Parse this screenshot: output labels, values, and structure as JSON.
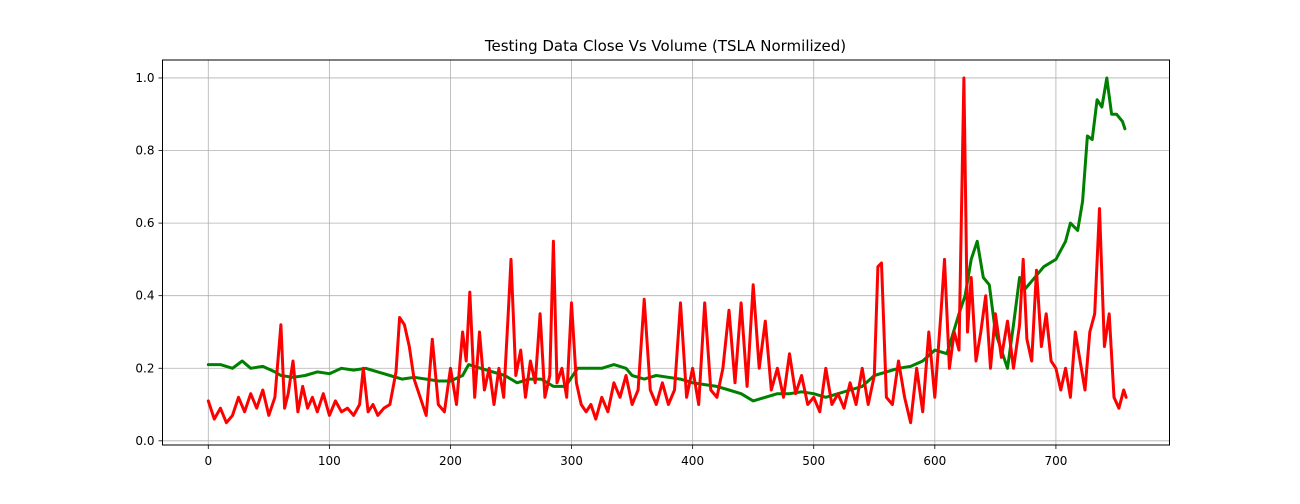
{
  "chart_data": {
    "type": "line",
    "title": "Testing Data Close Vs Volume (TSLA Normilized)",
    "xlabel": "",
    "ylabel": "",
    "xlim": [
      -37.8,
      793.8
    ],
    "ylim": [
      -0.0115,
      1.0495
    ],
    "grid": true,
    "x_ticks": [
      0,
      100,
      200,
      300,
      400,
      500,
      600,
      700
    ],
    "x_tick_labels": [
      "0",
      "100",
      "200",
      "300",
      "400",
      "500",
      "600",
      "700"
    ],
    "y_ticks": [
      0.0,
      0.2,
      0.4,
      0.6,
      0.8,
      1.0
    ],
    "y_tick_labels": [
      "0.0",
      "0.2",
      "0.4",
      "0.6",
      "0.8",
      "1.0"
    ],
    "series": [
      {
        "color": "#008000",
        "line_width": 3,
        "points": [
          [
            0,
            0.21
          ],
          [
            10,
            0.21
          ],
          [
            20,
            0.2
          ],
          [
            28,
            0.22
          ],
          [
            35,
            0.2
          ],
          [
            45,
            0.205
          ],
          [
            55,
            0.19
          ],
          [
            60,
            0.18
          ],
          [
            70,
            0.175
          ],
          [
            80,
            0.18
          ],
          [
            90,
            0.19
          ],
          [
            100,
            0.185
          ],
          [
            110,
            0.2
          ],
          [
            120,
            0.195
          ],
          [
            130,
            0.2
          ],
          [
            140,
            0.19
          ],
          [
            150,
            0.18
          ],
          [
            160,
            0.17
          ],
          [
            170,
            0.175
          ],
          [
            180,
            0.17
          ],
          [
            190,
            0.165
          ],
          [
            200,
            0.165
          ],
          [
            210,
            0.18
          ],
          [
            215,
            0.21
          ],
          [
            225,
            0.2
          ],
          [
            235,
            0.19
          ],
          [
            245,
            0.18
          ],
          [
            255,
            0.16
          ],
          [
            265,
            0.17
          ],
          [
            275,
            0.17
          ],
          [
            285,
            0.15
          ],
          [
            295,
            0.15
          ],
          [
            305,
            0.2
          ],
          [
            315,
            0.2
          ],
          [
            325,
            0.2
          ],
          [
            335,
            0.21
          ],
          [
            345,
            0.2
          ],
          [
            350,
            0.18
          ],
          [
            360,
            0.17
          ],
          [
            370,
            0.18
          ],
          [
            380,
            0.175
          ],
          [
            390,
            0.17
          ],
          [
            400,
            0.16
          ],
          [
            410,
            0.155
          ],
          [
            420,
            0.15
          ],
          [
            430,
            0.14
          ],
          [
            440,
            0.13
          ],
          [
            450,
            0.11
          ],
          [
            460,
            0.12
          ],
          [
            470,
            0.13
          ],
          [
            480,
            0.13
          ],
          [
            490,
            0.135
          ],
          [
            500,
            0.13
          ],
          [
            510,
            0.12
          ],
          [
            520,
            0.13
          ],
          [
            530,
            0.14
          ],
          [
            540,
            0.15
          ],
          [
            550,
            0.18
          ],
          [
            560,
            0.19
          ],
          [
            570,
            0.2
          ],
          [
            580,
            0.205
          ],
          [
            590,
            0.22
          ],
          [
            600,
            0.25
          ],
          [
            610,
            0.24
          ],
          [
            620,
            0.35
          ],
          [
            625,
            0.4
          ],
          [
            630,
            0.5
          ],
          [
            635,
            0.55
          ],
          [
            640,
            0.45
          ],
          [
            645,
            0.43
          ],
          [
            650,
            0.3
          ],
          [
            655,
            0.25
          ],
          [
            660,
            0.2
          ],
          [
            665,
            0.32
          ],
          [
            670,
            0.45
          ],
          [
            675,
            0.42
          ],
          [
            680,
            0.44
          ],
          [
            690,
            0.48
          ],
          [
            700,
            0.5
          ],
          [
            708,
            0.55
          ],
          [
            712,
            0.6
          ],
          [
            718,
            0.58
          ],
          [
            722,
            0.66
          ],
          [
            726,
            0.84
          ],
          [
            730,
            0.83
          ],
          [
            734,
            0.94
          ],
          [
            738,
            0.92
          ],
          [
            742,
            1.0
          ],
          [
            746,
            0.9
          ],
          [
            750,
            0.9
          ],
          [
            755,
            0.88
          ],
          [
            757,
            0.86
          ]
        ]
      },
      {
        "color": "#ff0000",
        "line_width": 3,
        "points": [
          [
            0,
            0.11
          ],
          [
            5,
            0.06
          ],
          [
            10,
            0.09
          ],
          [
            15,
            0.05
          ],
          [
            20,
            0.07
          ],
          [
            25,
            0.12
          ],
          [
            30,
            0.08
          ],
          [
            35,
            0.13
          ],
          [
            40,
            0.09
          ],
          [
            45,
            0.14
          ],
          [
            50,
            0.07
          ],
          [
            55,
            0.12
          ],
          [
            60,
            0.32
          ],
          [
            63,
            0.09
          ],
          [
            66,
            0.13
          ],
          [
            70,
            0.22
          ],
          [
            74,
            0.08
          ],
          [
            78,
            0.15
          ],
          [
            82,
            0.09
          ],
          [
            86,
            0.12
          ],
          [
            90,
            0.08
          ],
          [
            95,
            0.13
          ],
          [
            100,
            0.07
          ],
          [
            105,
            0.11
          ],
          [
            110,
            0.08
          ],
          [
            115,
            0.09
          ],
          [
            120,
            0.07
          ],
          [
            125,
            0.1
          ],
          [
            128,
            0.2
          ],
          [
            132,
            0.08
          ],
          [
            136,
            0.1
          ],
          [
            140,
            0.07
          ],
          [
            145,
            0.09
          ],
          [
            150,
            0.1
          ],
          [
            155,
            0.19
          ],
          [
            158,
            0.34
          ],
          [
            162,
            0.32
          ],
          [
            166,
            0.26
          ],
          [
            170,
            0.17
          ],
          [
            175,
            0.12
          ],
          [
            180,
            0.07
          ],
          [
            185,
            0.28
          ],
          [
            190,
            0.1
          ],
          [
            195,
            0.08
          ],
          [
            200,
            0.2
          ],
          [
            205,
            0.1
          ],
          [
            210,
            0.3
          ],
          [
            213,
            0.22
          ],
          [
            216,
            0.41
          ],
          [
            220,
            0.12
          ],
          [
            224,
            0.3
          ],
          [
            228,
            0.14
          ],
          [
            232,
            0.2
          ],
          [
            236,
            0.1
          ],
          [
            240,
            0.2
          ],
          [
            244,
            0.12
          ],
          [
            248,
            0.37
          ],
          [
            250,
            0.5
          ],
          [
            254,
            0.18
          ],
          [
            258,
            0.25
          ],
          [
            262,
            0.12
          ],
          [
            266,
            0.22
          ],
          [
            270,
            0.16
          ],
          [
            274,
            0.35
          ],
          [
            278,
            0.12
          ],
          [
            282,
            0.18
          ],
          [
            285,
            0.55
          ],
          [
            288,
            0.16
          ],
          [
            292,
            0.2
          ],
          [
            296,
            0.12
          ],
          [
            300,
            0.38
          ],
          [
            304,
            0.16
          ],
          [
            308,
            0.1
          ],
          [
            312,
            0.08
          ],
          [
            316,
            0.1
          ],
          [
            320,
            0.06
          ],
          [
            325,
            0.12
          ],
          [
            330,
            0.08
          ],
          [
            335,
            0.16
          ],
          [
            340,
            0.12
          ],
          [
            345,
            0.18
          ],
          [
            350,
            0.1
          ],
          [
            355,
            0.14
          ],
          [
            360,
            0.39
          ],
          [
            365,
            0.14
          ],
          [
            370,
            0.1
          ],
          [
            375,
            0.16
          ],
          [
            380,
            0.1
          ],
          [
            385,
            0.14
          ],
          [
            390,
            0.38
          ],
          [
            395,
            0.12
          ],
          [
            400,
            0.2
          ],
          [
            405,
            0.1
          ],
          [
            410,
            0.38
          ],
          [
            415,
            0.14
          ],
          [
            420,
            0.12
          ],
          [
            425,
            0.2
          ],
          [
            430,
            0.36
          ],
          [
            435,
            0.16
          ],
          [
            440,
            0.38
          ],
          [
            445,
            0.15
          ],
          [
            450,
            0.43
          ],
          [
            455,
            0.2
          ],
          [
            460,
            0.33
          ],
          [
            465,
            0.14
          ],
          [
            470,
            0.2
          ],
          [
            475,
            0.12
          ],
          [
            480,
            0.24
          ],
          [
            485,
            0.13
          ],
          [
            490,
            0.18
          ],
          [
            495,
            0.1
          ],
          [
            500,
            0.12
          ],
          [
            505,
            0.08
          ],
          [
            510,
            0.2
          ],
          [
            515,
            0.1
          ],
          [
            520,
            0.13
          ],
          [
            525,
            0.09
          ],
          [
            530,
            0.16
          ],
          [
            535,
            0.1
          ],
          [
            540,
            0.2
          ],
          [
            545,
            0.1
          ],
          [
            550,
            0.18
          ],
          [
            553,
            0.48
          ],
          [
            556,
            0.49
          ],
          [
            560,
            0.12
          ],
          [
            565,
            0.1
          ],
          [
            570,
            0.22
          ],
          [
            575,
            0.12
          ],
          [
            580,
            0.05
          ],
          [
            585,
            0.2
          ],
          [
            590,
            0.08
          ],
          [
            595,
            0.3
          ],
          [
            600,
            0.12
          ],
          [
            605,
            0.35
          ],
          [
            608,
            0.5
          ],
          [
            612,
            0.2
          ],
          [
            616,
            0.3
          ],
          [
            620,
            0.25
          ],
          [
            624,
            1.0
          ],
          [
            627,
            0.3
          ],
          [
            630,
            0.45
          ],
          [
            634,
            0.22
          ],
          [
            638,
            0.3
          ],
          [
            642,
            0.4
          ],
          [
            646,
            0.2
          ],
          [
            650,
            0.35
          ],
          [
            655,
            0.23
          ],
          [
            660,
            0.33
          ],
          [
            665,
            0.2
          ],
          [
            670,
            0.32
          ],
          [
            673,
            0.5
          ],
          [
            676,
            0.28
          ],
          [
            680,
            0.22
          ],
          [
            684,
            0.47
          ],
          [
            688,
            0.26
          ],
          [
            692,
            0.35
          ],
          [
            696,
            0.22
          ],
          [
            700,
            0.2
          ],
          [
            704,
            0.14
          ],
          [
            708,
            0.2
          ],
          [
            712,
            0.12
          ],
          [
            716,
            0.3
          ],
          [
            720,
            0.22
          ],
          [
            724,
            0.14
          ],
          [
            728,
            0.3
          ],
          [
            732,
            0.35
          ],
          [
            736,
            0.64
          ],
          [
            740,
            0.26
          ],
          [
            744,
            0.35
          ],
          [
            748,
            0.12
          ],
          [
            752,
            0.09
          ],
          [
            756,
            0.14
          ],
          [
            758,
            0.12
          ]
        ]
      }
    ]
  }
}
